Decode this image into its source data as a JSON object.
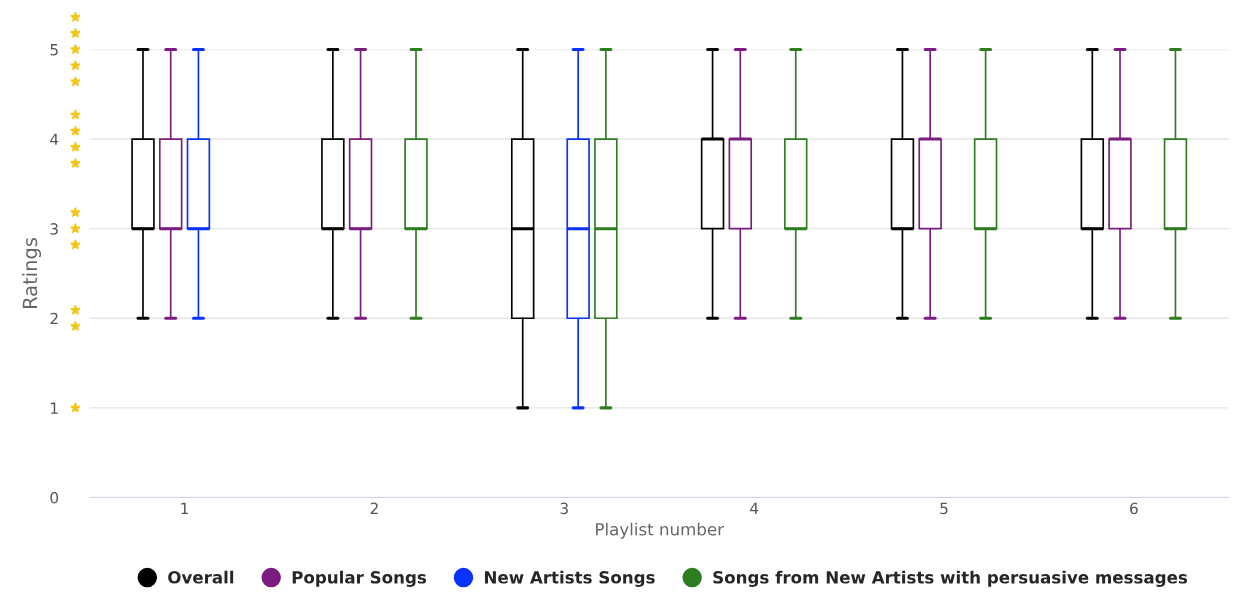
{
  "chart_data": {
    "type": "box",
    "xlabel": "Playlist number",
    "ylabel": "Ratings",
    "categories": [
      "1",
      "2",
      "3",
      "4",
      "5",
      "6"
    ],
    "ylim": [
      0,
      5
    ],
    "yticks": [
      0,
      1,
      2,
      3,
      4,
      5
    ],
    "grid": "y",
    "legend": "bottom",
    "series": [
      {
        "name": "Overall",
        "color": "#000000",
        "boxes": [
          {
            "low": 2,
            "q1": 3,
            "median": 3,
            "q3": 4,
            "high": 5
          },
          {
            "low": 2,
            "q1": 3,
            "median": 3,
            "q3": 4,
            "high": 5
          },
          {
            "low": 1,
            "q1": 2,
            "median": 3,
            "q3": 4,
            "high": 5
          },
          {
            "low": 2,
            "q1": 3,
            "median": 4,
            "q3": 4,
            "high": 5
          },
          {
            "low": 2,
            "q1": 3,
            "median": 3,
            "q3": 4,
            "high": 5
          },
          {
            "low": 2,
            "q1": 3,
            "median": 3,
            "q3": 4,
            "high": 5
          }
        ]
      },
      {
        "name": "Popular Songs",
        "color": "#7b1c80",
        "boxes": [
          {
            "low": 2,
            "q1": 3,
            "median": 3,
            "q3": 4,
            "high": 5
          },
          {
            "low": 2,
            "q1": 3,
            "median": 3,
            "q3": 4,
            "high": 5
          },
          null,
          {
            "low": 2,
            "q1": 3,
            "median": 4,
            "q3": 4,
            "high": 5
          },
          {
            "low": 2,
            "q1": 3,
            "median": 4,
            "q3": 4,
            "high": 5
          },
          {
            "low": 2,
            "q1": 3,
            "median": 4,
            "q3": 4,
            "high": 5
          }
        ]
      },
      {
        "name": "New Artists Songs",
        "color": "#0a32ff",
        "boxes": [
          {
            "low": 2,
            "q1": 3,
            "median": 3,
            "q3": 4,
            "high": 5
          },
          null,
          {
            "low": 1,
            "q1": 2,
            "median": 3,
            "q3": 4,
            "high": 5
          },
          null,
          null,
          null
        ]
      },
      {
        "name": "Songs from New Artists with persuasive messages",
        "color": "#2e7d1f",
        "boxes": [
          null,
          {
            "low": 2,
            "q1": 3,
            "median": 3,
            "q3": 4,
            "high": 5
          },
          {
            "low": 1,
            "q1": 2,
            "median": 3,
            "q3": 4,
            "high": 5
          },
          {
            "low": 2,
            "q1": 3,
            "median": 3,
            "q3": 4,
            "high": 5
          },
          {
            "low": 2,
            "q1": 3,
            "median": 3,
            "q3": 4,
            "high": 5
          },
          {
            "low": 2,
            "q1": 3,
            "median": 3,
            "q3": 4,
            "high": 5
          }
        ]
      }
    ]
  }
}
